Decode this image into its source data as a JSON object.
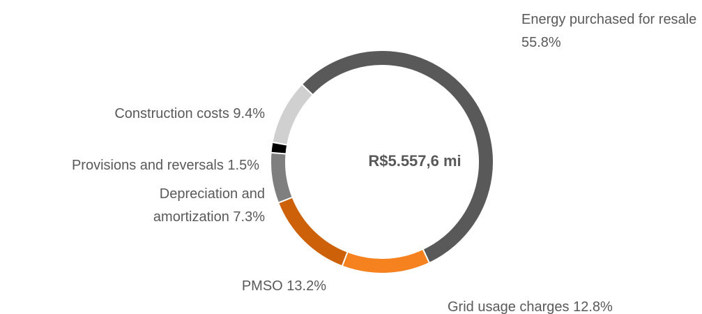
{
  "chart_data": {
    "type": "donut",
    "center_label": "R$5.557,6 mi",
    "categories": [
      "Energy purchased for resale",
      "Grid usage charges",
      "PMSO",
      "Depreciation and amortization",
      "Provisions and reversals",
      "Construction costs"
    ],
    "values": [
      55.8,
      12.8,
      13.2,
      7.3,
      1.5,
      9.4
    ],
    "value_labels": [
      "55.8%",
      "12.8%",
      "13.2%",
      "7.3%",
      "1.5%",
      "9.4%"
    ],
    "colors": [
      "#595959",
      "#f5821f",
      "#cc6109",
      "#7f7f7f",
      "#000000",
      "#d0d0d0"
    ]
  }
}
